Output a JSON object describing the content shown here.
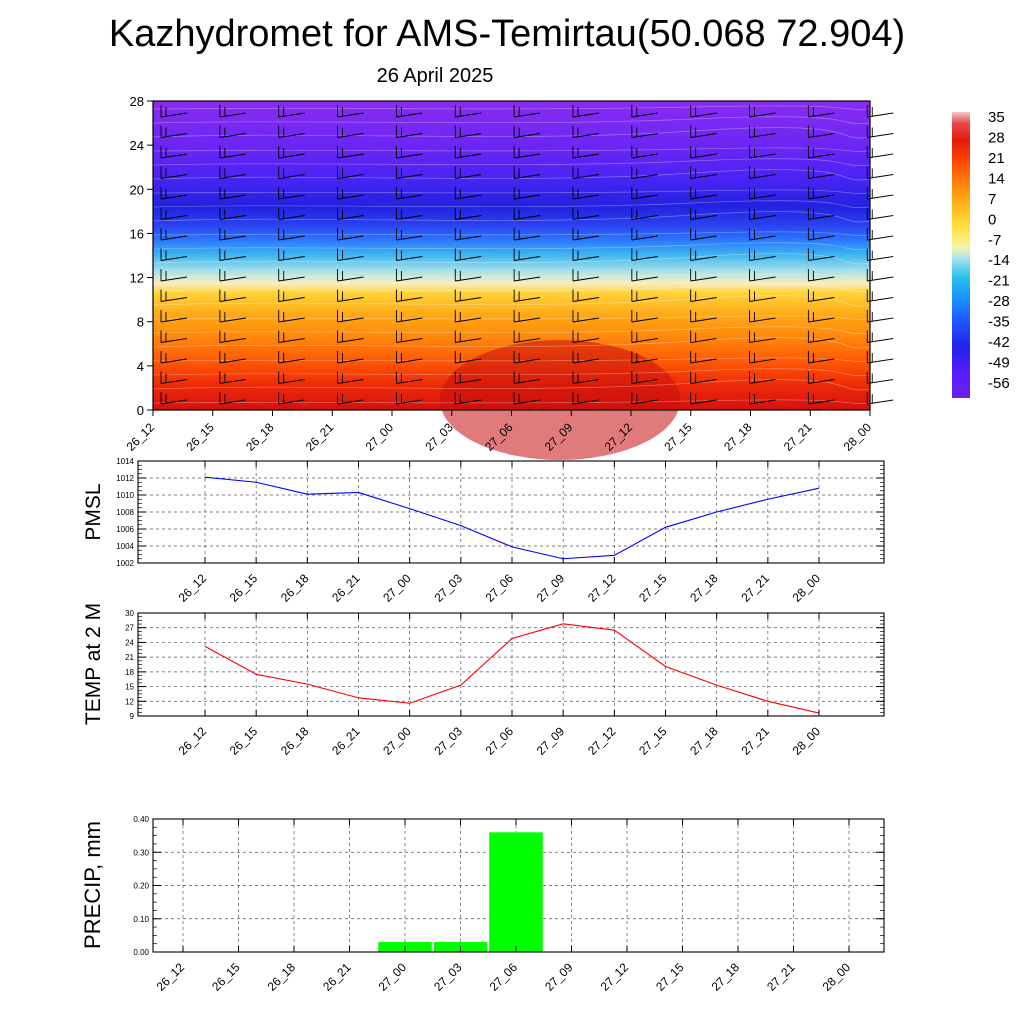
{
  "title": "Kazhydromet for AMS-Temirtau(50.068 72.904)",
  "subtitle": "26 April 2025",
  "chart_data": [
    {
      "type": "heatmap",
      "x_categories": [
        "26_12",
        "26_15",
        "26_18",
        "26_21",
        "27_00",
        "27_03",
        "27_06",
        "27_09",
        "27_12",
        "27_15",
        "27_18",
        "27_21",
        "28_00"
      ],
      "y_ticks": [
        0,
        4,
        8,
        12,
        16,
        20,
        24,
        28
      ],
      "ylim": [
        0,
        28
      ],
      "colorbar_ticks": [
        35,
        28,
        21,
        14,
        7,
        0,
        -7,
        -14,
        -21,
        -28,
        -35,
        -42,
        -49,
        -56
      ],
      "wind_barbs": true,
      "contours": true
    },
    {
      "type": "line",
      "ylabel": "PMSL",
      "x_categories": [
        "26_12",
        "26_15",
        "26_18",
        "26_21",
        "27_00",
        "27_03",
        "27_06",
        "27_09",
        "27_12",
        "27_15",
        "27_18",
        "27_21",
        "28_00"
      ],
      "values": [
        1012.1,
        1011.5,
        1010.1,
        1010.3,
        1008.4,
        1006.4,
        1003.9,
        1002.5,
        1002.9,
        1006.2,
        1008.0,
        1009.5,
        1010.8
      ],
      "ylim": [
        1002,
        1014
      ],
      "y_ticks": [
        1002,
        1004,
        1006,
        1008,
        1010,
        1012,
        1014
      ],
      "color": "#0000ff",
      "grid": true
    },
    {
      "type": "line",
      "ylabel": "TEMP at 2 M",
      "x_categories": [
        "26_12",
        "26_15",
        "26_18",
        "26_21",
        "27_00",
        "27_03",
        "27_06",
        "27_09",
        "27_12",
        "27_15",
        "27_18",
        "27_21",
        "28_00"
      ],
      "values": [
        23.2,
        17.5,
        15.5,
        12.7,
        11.6,
        15.3,
        24.8,
        27.8,
        26.5,
        19.1,
        15.3,
        12.0,
        9.6
      ],
      "ylim": [
        9,
        30
      ],
      "y_ticks": [
        9,
        12,
        15,
        18,
        21,
        24,
        27,
        30
      ],
      "color": "#ff0000",
      "grid": true
    },
    {
      "type": "bar",
      "ylabel": "PRECIP, mm",
      "x_categories": [
        "26_12",
        "26_15",
        "26_18",
        "26_21",
        "27_00",
        "27_03",
        "27_06",
        "27_09",
        "27_12",
        "27_15",
        "27_18",
        "27_21",
        "28_00"
      ],
      "values": [
        0,
        0,
        0,
        0,
        0.03,
        0.03,
        0.36,
        0,
        0,
        0,
        0,
        0,
        0
      ],
      "ylim": [
        0,
        0.4
      ],
      "y_ticks": [
        "0.00",
        "0.10",
        "0.20",
        "0.30",
        "0.40"
      ],
      "color": "#00ff00",
      "grid": true
    }
  ]
}
